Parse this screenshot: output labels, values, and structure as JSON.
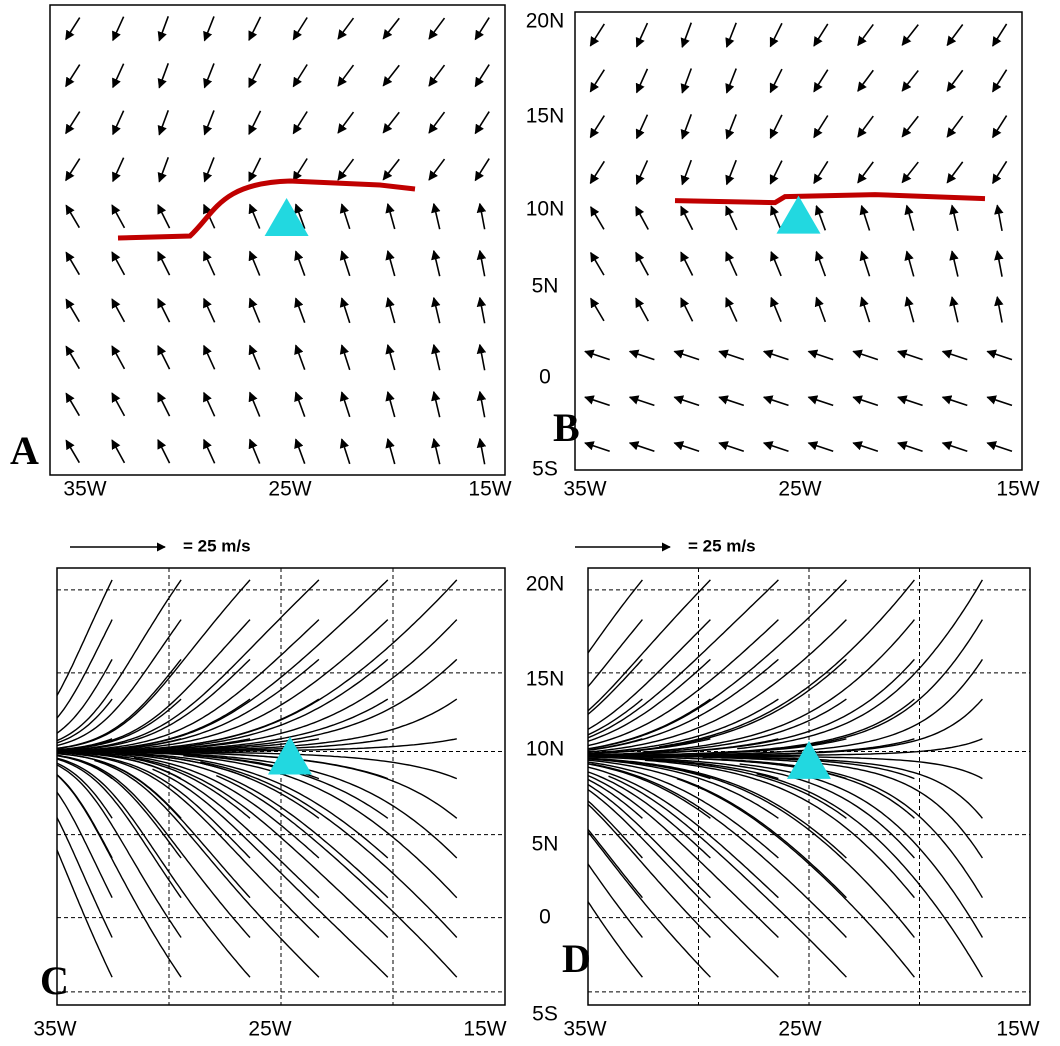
{
  "panels": [
    {
      "letter": "A",
      "x_labels": [
        "35W",
        "25W",
        "15W"
      ]
    },
    {
      "letter": "B",
      "x_labels": [
        "35W",
        "25W",
        "15W"
      ],
      "y_labels": [
        "20N",
        "15N",
        "10N",
        "5N",
        "0",
        "5S"
      ]
    },
    {
      "letter": "C",
      "x_labels": [
        "35W",
        "25W",
        "15W"
      ],
      "y_labels": [
        "20N",
        "15N",
        "10N",
        "5N",
        "0",
        "5S"
      ],
      "scale_label": "= 25 m/s"
    },
    {
      "letter": "D",
      "x_labels": [
        "35W",
        "25W",
        "15W"
      ],
      "scale_label": "= 25 m/s"
    }
  ]
}
